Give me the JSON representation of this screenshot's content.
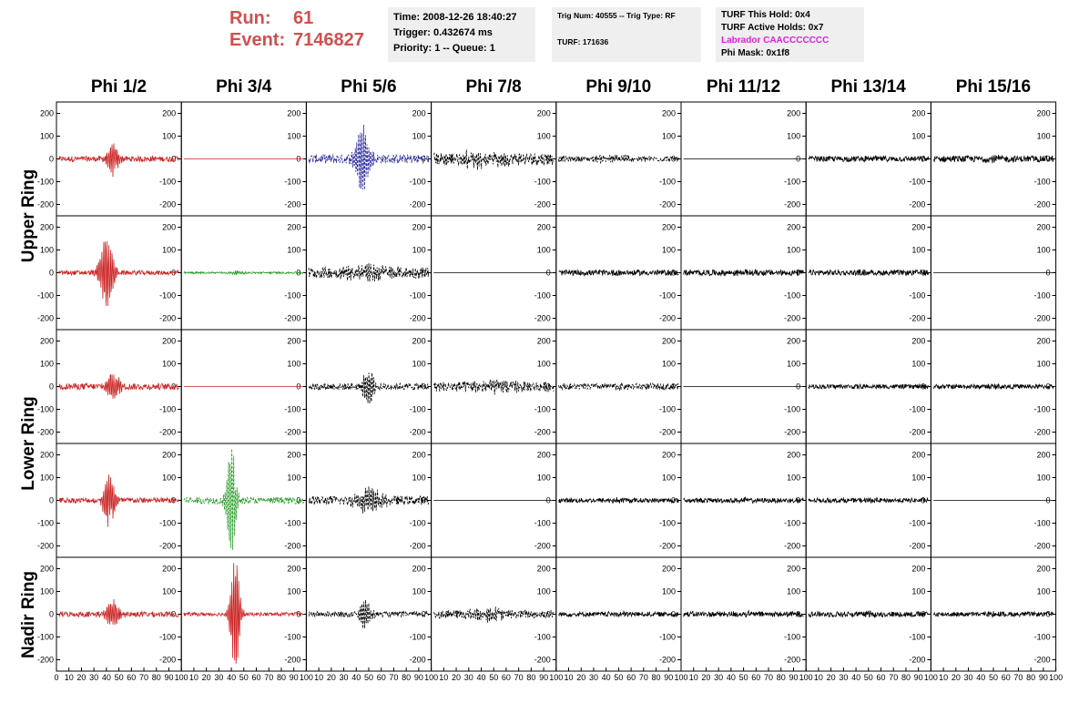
{
  "header": {
    "run_label": "Run:",
    "run_value": "61",
    "event_label": "Event:",
    "event_value": "7146827"
  },
  "info_time": {
    "time": "Time: 2008-12-26 18:40:27",
    "trigger": "Trigger: 0.432674 ms",
    "priority": "Priority: 1 -- Queue: 1"
  },
  "info_trig": {
    "trig": "Trig Num: 40555 -- Trig Type: RF",
    "turf": "TURF: 171636"
  },
  "info_turf": {
    "this_hold": "TURF This Hold: 0x4",
    "active_holds": "TURF Active Holds: 0x7",
    "labrador": "Labrador CAACCCCCCC",
    "phi_mask": "Phi Mask: 0x1f8"
  },
  "chart_data": {
    "type": "line",
    "columns": [
      "Phi 1/2",
      "Phi 3/4",
      "Phi 5/6",
      "Phi 7/8",
      "Phi 9/10",
      "Phi 11/12",
      "Phi 13/14",
      "Phi 15/16"
    ],
    "rows": [
      "Upper Ring",
      "Upper Ring",
      "Lower Ring",
      "Lower Ring",
      "Nadir Ring"
    ],
    "ring_labels": [
      {
        "label": "Upper Ring",
        "rows": [
          0,
          1
        ]
      },
      {
        "label": "Lower Ring",
        "rows": [
          2,
          3
        ]
      },
      {
        "label": "Nadir Ring",
        "rows": [
          4,
          4
        ]
      }
    ],
    "xlim": [
      0,
      100
    ],
    "ylim": [
      -250,
      250
    ],
    "yticks": [
      -200,
      -100,
      0,
      100,
      200
    ],
    "xticks": [
      0,
      10,
      20,
      30,
      40,
      50,
      60,
      70,
      80,
      90,
      100
    ],
    "colors": {
      "red": "#cc2222",
      "green": "#229922",
      "blue": "#22229a",
      "black": "#000000"
    },
    "waveforms": [
      [
        {
          "color": "red",
          "amp": 70,
          "noise": 12,
          "center": 45,
          "width": 5
        },
        {
          "color": "red",
          "flat": true
        },
        {
          "color": "blue",
          "amp": 140,
          "noise": 20,
          "center": 45,
          "width": 6,
          "dashed": true
        },
        {
          "color": "black",
          "amp": 25,
          "noise": 28,
          "center": 40,
          "width": 20,
          "dashed": true
        },
        {
          "color": "black",
          "amp": 10,
          "noise": 12,
          "center": 50,
          "width": 20,
          "dashed": true
        },
        {
          "color": "black",
          "flat": true
        },
        {
          "color": "black",
          "amp": 5,
          "noise": 12,
          "center": 50,
          "width": 10
        },
        {
          "color": "black",
          "amp": 5,
          "noise": 14,
          "center": 50,
          "width": 10
        }
      ],
      [
        {
          "color": "red",
          "amp": 150,
          "noise": 10,
          "center": 40,
          "width": 6
        },
        {
          "color": "green",
          "amp": 8,
          "noise": 4,
          "center": 45,
          "width": 5
        },
        {
          "color": "black",
          "amp": 20,
          "noise": 25,
          "center": 50,
          "width": 20,
          "dashed": true
        },
        {
          "color": "black",
          "flat": true
        },
        {
          "color": "black",
          "amp": 5,
          "noise": 12,
          "center": 50,
          "width": 10
        },
        {
          "color": "black",
          "amp": 5,
          "noise": 13,
          "center": 50,
          "width": 10
        },
        {
          "color": "black",
          "amp": 5,
          "noise": 12,
          "center": 50,
          "width": 10
        },
        {
          "color": "black",
          "flat": true
        }
      ],
      [
        {
          "color": "red",
          "amp": 60,
          "noise": 14,
          "center": 45,
          "width": 6
        },
        {
          "color": "red",
          "flat": true
        },
        {
          "color": "black",
          "amp": 80,
          "noise": 15,
          "center": 50,
          "width": 5,
          "dashed": true
        },
        {
          "color": "black",
          "amp": 15,
          "noise": 22,
          "center": 50,
          "width": 20,
          "dashed": true
        },
        {
          "color": "black",
          "amp": 5,
          "noise": 14,
          "center": 50,
          "width": 10,
          "dashed": true
        },
        {
          "color": "black",
          "flat": true
        },
        {
          "color": "black",
          "amp": 5,
          "noise": 10,
          "center": 50,
          "width": 10
        },
        {
          "color": "black",
          "amp": 5,
          "noise": 10,
          "center": 50,
          "width": 10
        }
      ],
      [
        {
          "color": "red",
          "amp": 110,
          "noise": 12,
          "center": 42,
          "width": 5
        },
        {
          "color": "green",
          "amp": 240,
          "noise": 15,
          "center": 40,
          "width": 4,
          "dashed": true
        },
        {
          "color": "black",
          "amp": 45,
          "noise": 20,
          "center": 50,
          "width": 12,
          "dashed": true
        },
        {
          "color": "black",
          "flat": true
        },
        {
          "color": "black",
          "amp": 5,
          "noise": 10,
          "center": 50,
          "width": 10
        },
        {
          "color": "black",
          "amp": 5,
          "noise": 10,
          "center": 50,
          "width": 10
        },
        {
          "color": "black",
          "amp": 5,
          "noise": 10,
          "center": 50,
          "width": 10
        },
        {
          "color": "black",
          "flat": true
        }
      ],
      [
        {
          "color": "red",
          "amp": 60,
          "noise": 12,
          "center": 45,
          "width": 6
        },
        {
          "color": "red",
          "amp": 250,
          "noise": 8,
          "center": 43,
          "width": 4
        },
        {
          "color": "black",
          "amp": 60,
          "noise": 12,
          "center": 47,
          "width": 5,
          "dashed": true
        },
        {
          "color": "black",
          "amp": 20,
          "noise": 18,
          "center": 45,
          "width": 15,
          "dashed": true
        },
        {
          "color": "black",
          "amp": 5,
          "noise": 10,
          "center": 50,
          "width": 10
        },
        {
          "color": "black",
          "amp": 5,
          "noise": 12,
          "center": 50,
          "width": 10
        },
        {
          "color": "black",
          "amp": 5,
          "noise": 12,
          "center": 50,
          "width": 10
        },
        {
          "color": "black",
          "amp": 5,
          "noise": 10,
          "center": 50,
          "width": 10
        }
      ]
    ]
  }
}
